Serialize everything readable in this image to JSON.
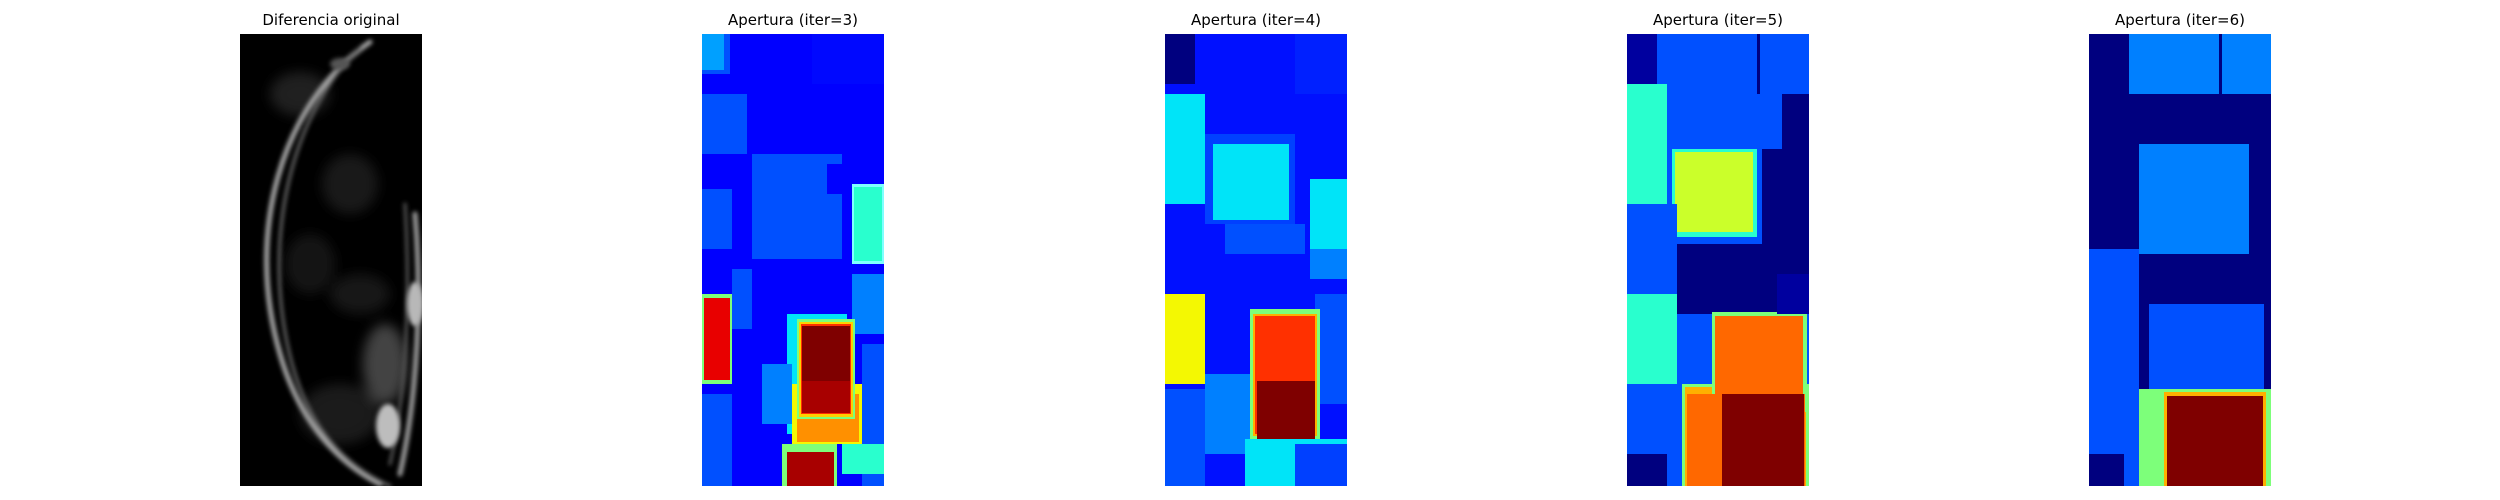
{
  "figure": {
    "panels": [
      {
        "title": "Diferencia original",
        "colormap": "gray"
      },
      {
        "title": "Apertura (iter=3)",
        "colormap": "jet"
      },
      {
        "title": "Apertura (iter=4)",
        "colormap": "jet"
      },
      {
        "title": "Apertura (iter=5)",
        "colormap": "jet"
      },
      {
        "title": "Apertura (iter=6)",
        "colormap": "jet"
      }
    ]
  },
  "colors": {
    "background": "#ffffff",
    "jet_dark_blue": "#00007f",
    "jet_blue": "#0000ff",
    "jet_mid_blue": "#0050ff",
    "jet_light_blue": "#0080ff",
    "jet_cyan": "#00e4f8",
    "jet_aqua": "#29ffce",
    "jet_green": "#7dff7a",
    "jet_yellow": "#f4f802",
    "jet_lime": "#cbff2a",
    "jet_orange": "#ff6800",
    "jet_red_orange": "#ff3000",
    "jet_red": "#e80000",
    "jet_dark_red": "#7f0000"
  }
}
